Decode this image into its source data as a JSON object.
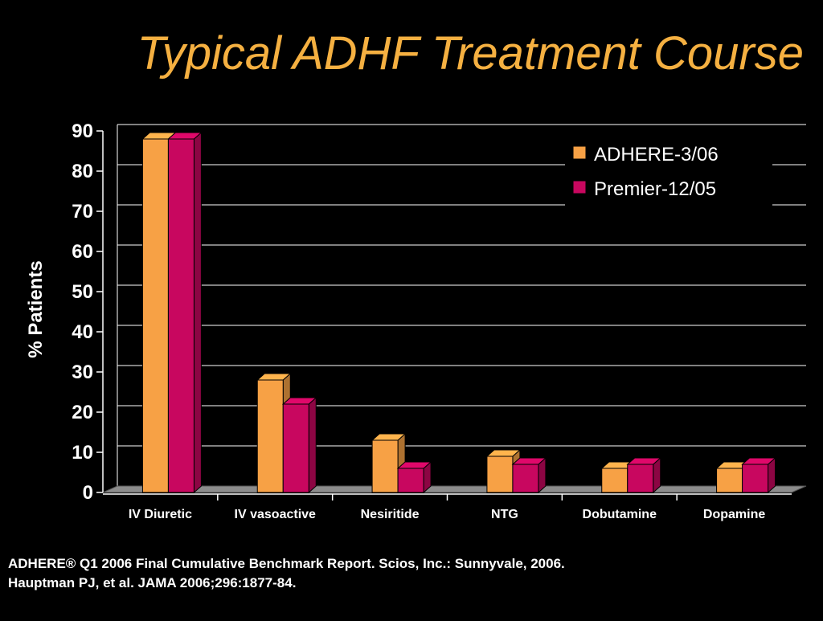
{
  "slide": {
    "title": "Typical ADHF Treatment Course",
    "references": [
      "ADHERE® Q1 2006 Final Cumulative Benchmark Report. Scios, Inc.: Sunnyvale, 2006.",
      "Hauptman PJ, et al. JAMA 2006;296:1877-84."
    ]
  },
  "chart_data": {
    "type": "bar",
    "style": "3d-clustered-column",
    "title": "",
    "xlabel": "",
    "ylabel": "% Patients",
    "ylim": [
      0,
      90
    ],
    "yticks": [
      0,
      10,
      20,
      30,
      40,
      50,
      60,
      70,
      80,
      90
    ],
    "grid": true,
    "legend_position": "top-right",
    "categories": [
      "IV Diuretic",
      "IV vasoactive",
      "Nesiritide",
      "NTG",
      "Dobutamine",
      "Dopamine"
    ],
    "series": [
      {
        "name": "ADHERE-3/06",
        "color": "#F7A145",
        "values": [
          88,
          28,
          13,
          9,
          6,
          6
        ]
      },
      {
        "name": "Premier-12/05",
        "color": "#C8075F",
        "values": [
          88,
          22,
          6,
          7,
          7,
          7
        ]
      }
    ]
  }
}
